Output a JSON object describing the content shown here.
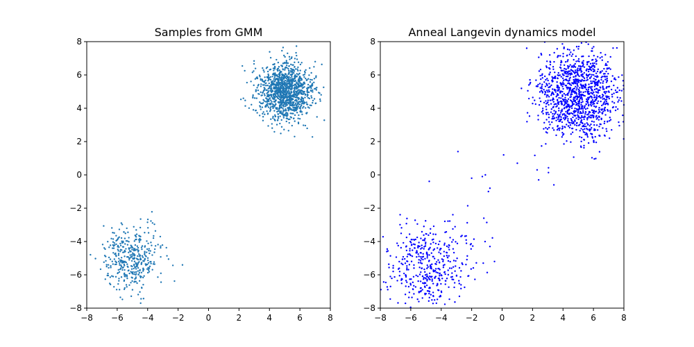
{
  "chart_data": [
    {
      "type": "scatter",
      "title": "Samples from GMM",
      "xlabel": "",
      "ylabel": "",
      "xlim": [
        -8,
        8
      ],
      "ylim": [
        -8,
        8
      ],
      "xticks": [
        "−8",
        "−6",
        "−4",
        "−2",
        "0",
        "2",
        "4",
        "6",
        "8"
      ],
      "yticks": [
        "−8",
        "−6",
        "−4",
        "−2",
        "0",
        "2",
        "4",
        "6",
        "8"
      ],
      "grid": false,
      "marker_color": "#1f77b4",
      "clusters": [
        {
          "center": [
            5.0,
            5.0
          ],
          "spread": [
            0.9,
            0.9
          ],
          "count": 1200
        },
        {
          "center": [
            -5.0,
            -5.0
          ],
          "spread": [
            0.95,
            0.95
          ],
          "count": 400
        }
      ]
    },
    {
      "type": "scatter",
      "title": "Anneal Langevin dynamics model",
      "xlabel": "",
      "ylabel": "",
      "xlim": [
        -8,
        8
      ],
      "ylim": [
        -8,
        8
      ],
      "xticks": [
        "−8",
        "−6",
        "−4",
        "−2",
        "0",
        "2",
        "4",
        "6",
        "8"
      ],
      "yticks": [
        "−8",
        "−6",
        "−4",
        "−2",
        "0",
        "2",
        "4",
        "6",
        "8"
      ],
      "grid": false,
      "marker_color": "#0000ff",
      "clusters": [
        {
          "center": [
            5.0,
            4.8
          ],
          "spread": [
            1.35,
            1.35
          ],
          "count": 1200
        },
        {
          "center": [
            -5.0,
            -5.3
          ],
          "spread": [
            1.45,
            1.35
          ],
          "count": 450
        }
      ],
      "scattered_points": [
        [
          -0.9,
          -1.0
        ],
        [
          -0.8,
          -0.8
        ],
        [
          -1.2,
          -2.6
        ],
        [
          -2.9,
          1.4
        ],
        [
          -2.0,
          -0.2
        ],
        [
          -0.5,
          -5.2
        ],
        [
          -0.8,
          -4.3
        ],
        [
          -1.3,
          -0.1
        ],
        [
          -1.1,
          0.0
        ],
        [
          1.0,
          0.7
        ],
        [
          2.3,
          0.3
        ],
        [
          3.4,
          -0.6
        ],
        [
          2.4,
          -0.3
        ],
        [
          0.1,
          1.2
        ],
        [
          -2.7,
          -6.6
        ]
      ]
    }
  ]
}
